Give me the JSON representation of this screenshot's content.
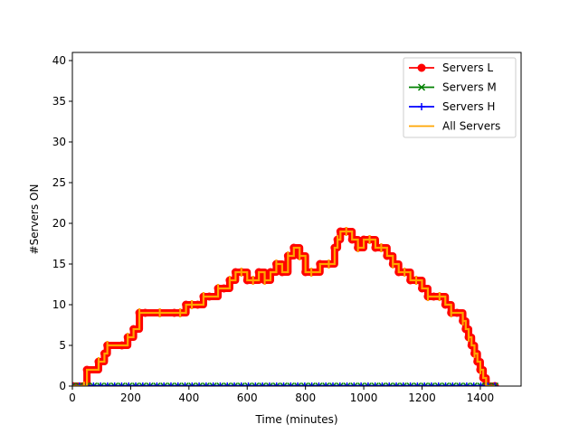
{
  "chart_data": {
    "type": "line",
    "title": "",
    "xlabel": "Time (minutes)",
    "ylabel": "#Servers ON",
    "xlim": [
      0,
      1540
    ],
    "ylim": [
      0,
      41
    ],
    "xticks": [
      0,
      200,
      400,
      600,
      800,
      1000,
      1200,
      1400
    ],
    "yticks": [
      0,
      5,
      10,
      15,
      20,
      25,
      30,
      35,
      40
    ],
    "grid": false,
    "legend_position": "top-right",
    "series": [
      {
        "name": "Servers L",
        "color": "#ff0000",
        "marker": "circle",
        "x": [
          0,
          40,
          50,
          90,
          110,
          120,
          170,
          190,
          210,
          230,
          250,
          300,
          350,
          370,
          390,
          410,
          430,
          450,
          470,
          500,
          520,
          540,
          560,
          580,
          600,
          620,
          640,
          660,
          680,
          700,
          720,
          740,
          760,
          780,
          800,
          820,
          850,
          880,
          900,
          910,
          920,
          940,
          960,
          980,
          1000,
          1020,
          1040,
          1060,
          1080,
          1100,
          1120,
          1140,
          1160,
          1180,
          1200,
          1220,
          1240,
          1260,
          1280,
          1300,
          1320,
          1340,
          1350,
          1360,
          1370,
          1380,
          1390,
          1400,
          1410,
          1420,
          1450
        ],
        "y": [
          0,
          0,
          2,
          3,
          4,
          5,
          5,
          6,
          7,
          9,
          9,
          9,
          9,
          9,
          10,
          10,
          10,
          11,
          11,
          12,
          12,
          13,
          14,
          14,
          13,
          13,
          14,
          13,
          14,
          15,
          14,
          16,
          17,
          16,
          14,
          14,
          15,
          15,
          17,
          18,
          19,
          19,
          18,
          17,
          18,
          18,
          17,
          17,
          16,
          15,
          14,
          14,
          13,
          13,
          12,
          11,
          11,
          11,
          10,
          9,
          9,
          8,
          7,
          6,
          5,
          4,
          3,
          2,
          1,
          0,
          0
        ]
      },
      {
        "name": "Servers M",
        "color": "#008000",
        "marker": "x",
        "x": [
          0,
          1450
        ],
        "y": [
          0,
          0
        ]
      },
      {
        "name": "Servers H",
        "color": "#0000ff",
        "marker": "plus",
        "x": [
          0,
          1450
        ],
        "y": [
          0,
          0
        ]
      },
      {
        "name": "All Servers",
        "color": "#ffa500",
        "marker": "none",
        "x": [
          0,
          40,
          50,
          90,
          110,
          120,
          170,
          190,
          210,
          230,
          250,
          300,
          350,
          370,
          390,
          410,
          430,
          450,
          470,
          500,
          520,
          540,
          560,
          580,
          600,
          620,
          640,
          660,
          680,
          700,
          720,
          740,
          760,
          780,
          800,
          820,
          850,
          880,
          900,
          910,
          920,
          940,
          960,
          980,
          1000,
          1020,
          1040,
          1060,
          1080,
          1100,
          1120,
          1140,
          1160,
          1180,
          1200,
          1220,
          1240,
          1260,
          1280,
          1300,
          1320,
          1340,
          1350,
          1360,
          1370,
          1380,
          1390,
          1400,
          1410,
          1420,
          1450
        ],
        "y": [
          0,
          0,
          2,
          3,
          4,
          5,
          5,
          6,
          7,
          9,
          9,
          9,
          9,
          9,
          10,
          10,
          10,
          11,
          11,
          12,
          12,
          13,
          14,
          14,
          13,
          13,
          14,
          13,
          14,
          15,
          14,
          16,
          17,
          16,
          14,
          14,
          15,
          15,
          17,
          18,
          19,
          19,
          18,
          17,
          18,
          18,
          17,
          17,
          16,
          15,
          14,
          14,
          13,
          13,
          12,
          11,
          11,
          11,
          10,
          9,
          9,
          8,
          7,
          6,
          5,
          4,
          3,
          2,
          1,
          0,
          0
        ]
      }
    ]
  }
}
